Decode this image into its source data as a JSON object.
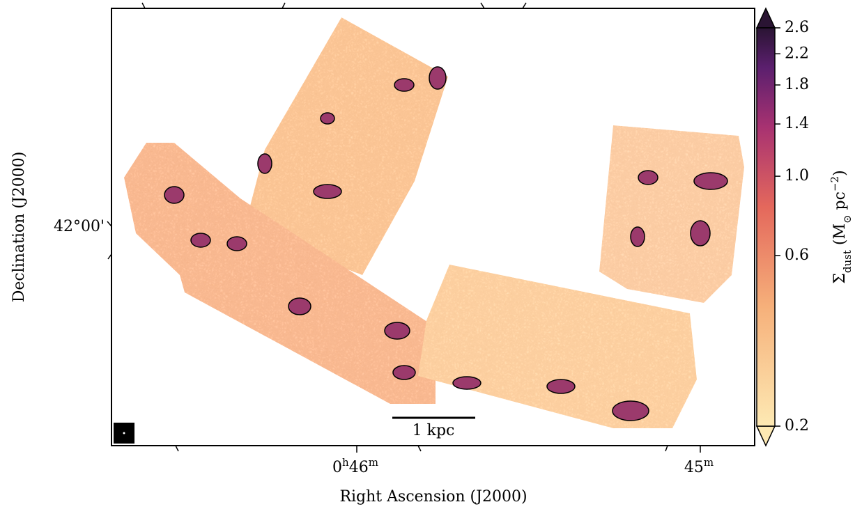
{
  "chart_data": {
    "type": "image",
    "x_label": "Right Ascension (J2000)",
    "y_label": "Declination (J2000)",
    "ra_ticks": [
      [
        "0",
        "h",
        "46",
        "m"
      ],
      [
        "45",
        "m"
      ]
    ],
    "dec_ticks": [
      "42°00'"
    ],
    "scale_bar": "1 kpc",
    "colorbar": {
      "label_parts": [
        "Σ",
        "dust",
        " (M",
        "⊙",
        " pc",
        "−2",
        ")"
      ],
      "log": true,
      "lim": [
        0.2,
        2.6
      ],
      "ticks": [
        0.2,
        0.6,
        1.0,
        1.4,
        1.8,
        2.2,
        2.6
      ],
      "tick_labels": [
        "0.2",
        "0.6",
        "1.0",
        "1.4",
        "1.8",
        "2.2",
        "2.6"
      ]
    }
  }
}
